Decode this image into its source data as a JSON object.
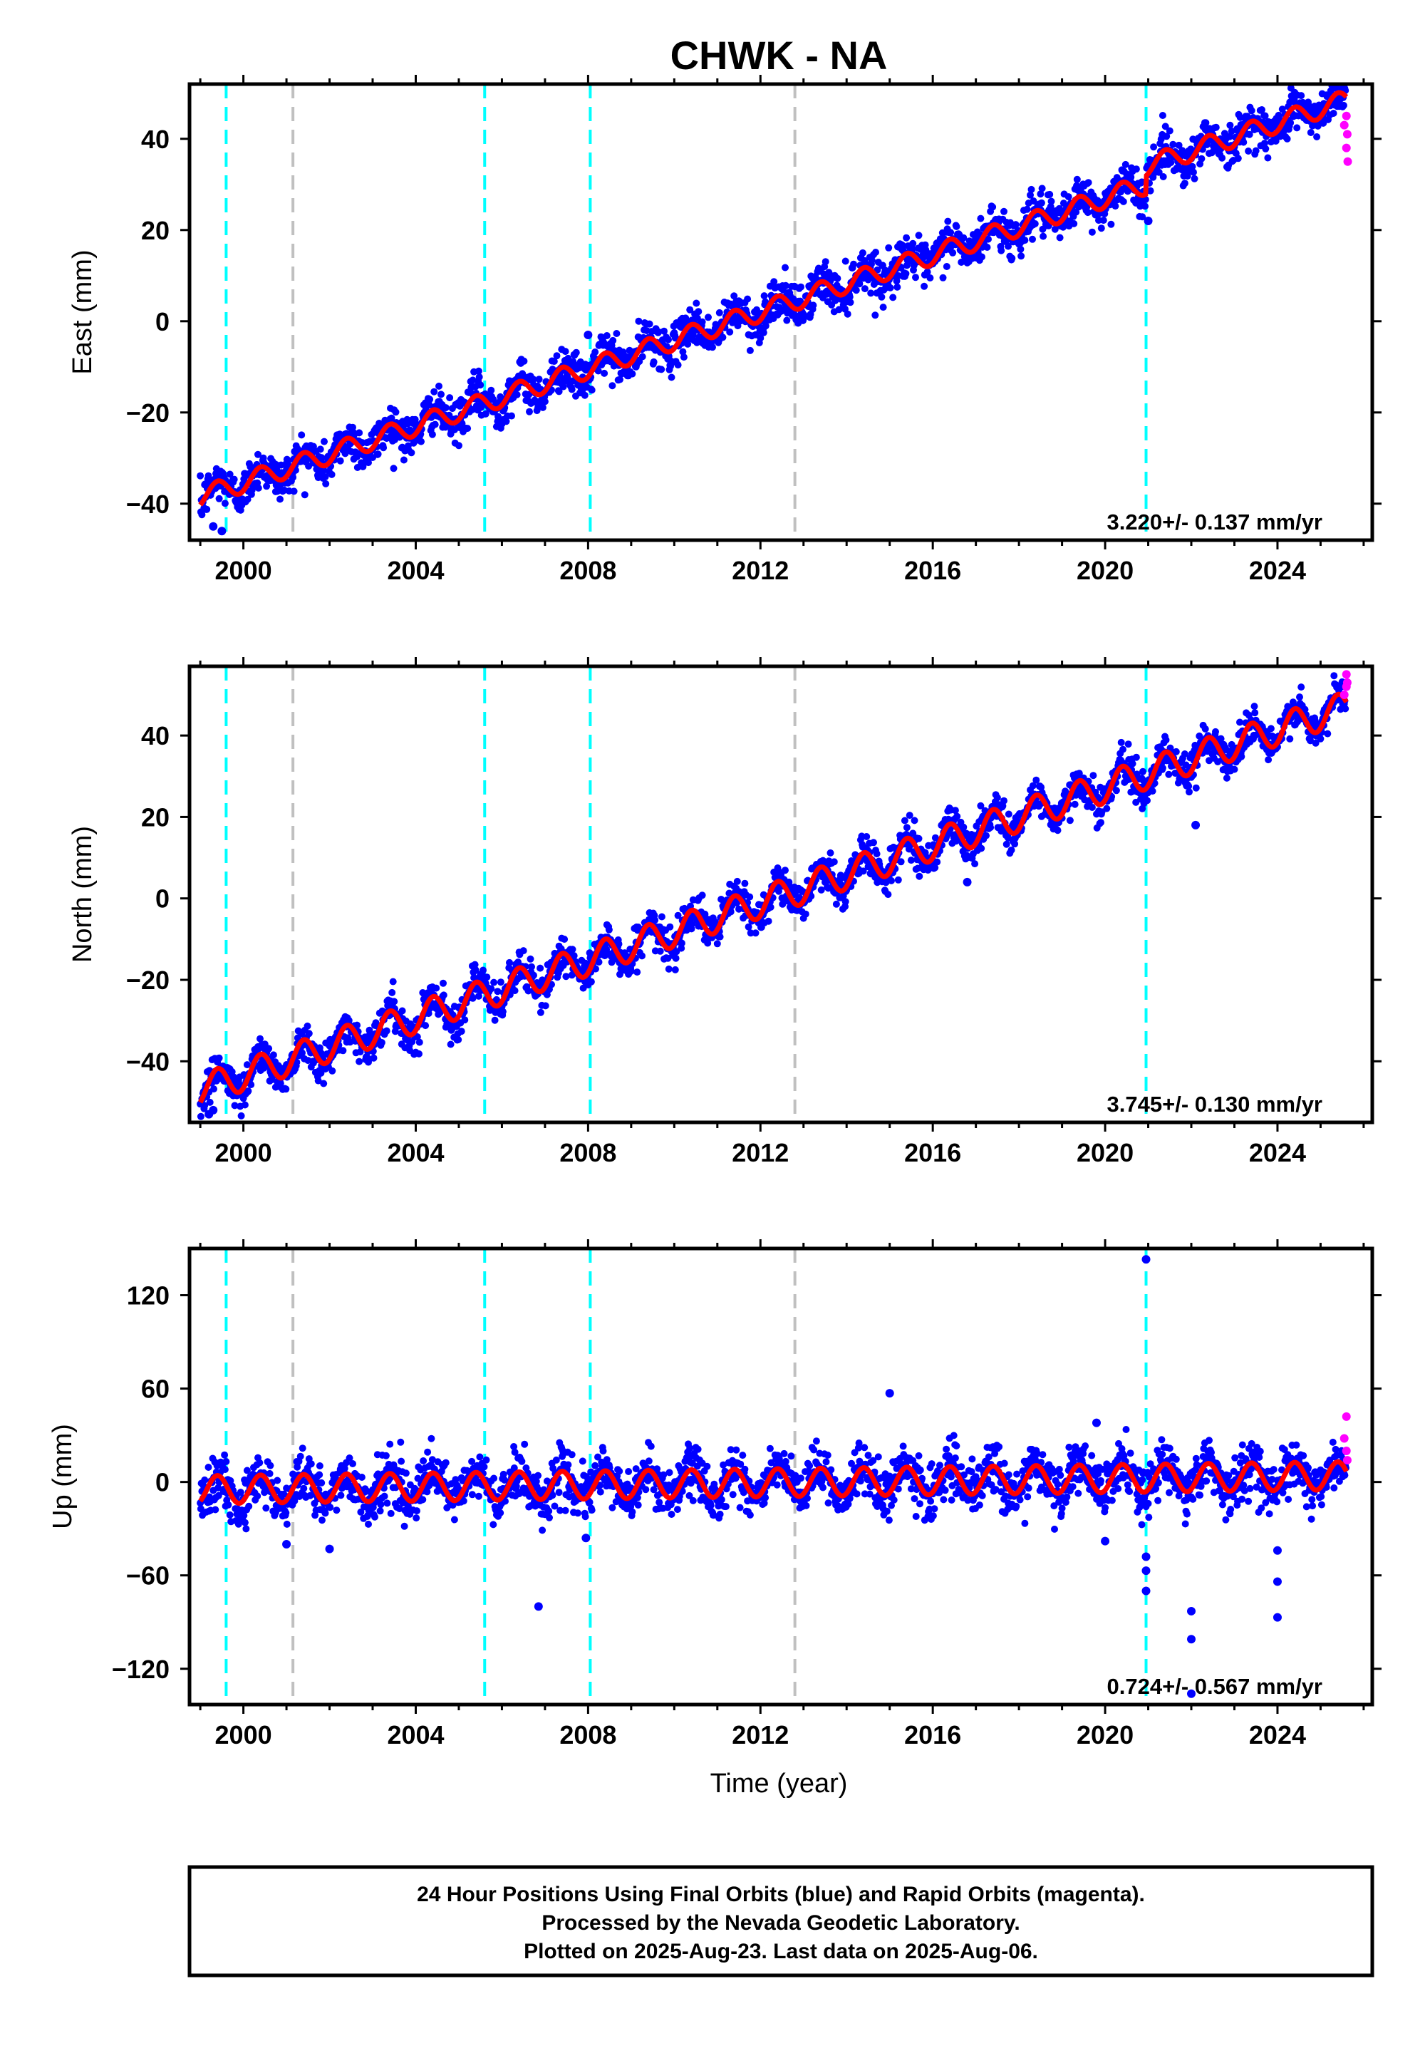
{
  "title": "CHWK - NA",
  "xlabel": "Time (year)",
  "footer": {
    "line1": "24 Hour Positions Using Final Orbits (blue) and Rapid Orbits (magenta).",
    "line2": "Processed by the Nevada Geodetic Laboratory.",
    "line3": "Plotted on 2025-Aug-23. Last data on 2025-Aug-06."
  },
  "colors": {
    "final_orbits": "#0000ff",
    "rapid_orbits": "#ff00ff",
    "model_fit": "#ff0000",
    "equipment_change": "#00ffff",
    "other_event": "#c0c0c0"
  },
  "chart_data": [
    {
      "type": "scatter",
      "ylabel": "East (mm)",
      "xlim": [
        1998.75,
        2026.2
      ],
      "ylim": [
        -48,
        52
      ],
      "xticks": [
        2000,
        2004,
        2008,
        2012,
        2016,
        2020,
        2024
      ],
      "yticks": [
        -40,
        -20,
        0,
        20,
        40
      ],
      "rate_label": "3.220+/- 0.137 mm/yr",
      "events_cyan": [
        1999.6,
        2005.6,
        2008.05,
        2020.95
      ],
      "events_gray": [
        2001.15,
        2012.8
      ],
      "trend": {
        "start": [
          1999.0,
          -38.5
        ],
        "end": [
          2025.6,
          44.5
        ],
        "seasonal_amp": 2.2,
        "noise": 2.3
      },
      "offsets": [
        {
          "x": 2020.95,
          "dy": 4
        }
      ],
      "outliers": [
        [
          1999.3,
          -45
        ],
        [
          1999.5,
          -46
        ],
        [
          2008.0,
          -3
        ],
        [
          2021.0,
          22
        ]
      ],
      "rapid_points": [
        [
          2025.55,
          43
        ],
        [
          2025.6,
          45
        ],
        [
          2025.62,
          41
        ],
        [
          2025.6,
          38
        ],
        [
          2025.63,
          35
        ]
      ]
    },
    {
      "type": "scatter",
      "ylabel": "North (mm)",
      "xlim": [
        1998.75,
        2026.2
      ],
      "ylim": [
        -55,
        57
      ],
      "xticks": [
        2000,
        2004,
        2008,
        2012,
        2016,
        2020,
        2024
      ],
      "yticks": [
        -40,
        -20,
        0,
        20,
        40
      ],
      "rate_label": "3.745+/- 0.130 mm/yr",
      "events_cyan": [
        1999.6,
        2005.6,
        2008.05,
        2020.95
      ],
      "events_gray": [
        2001.15,
        2012.8
      ],
      "trend": {
        "start": [
          1999.0,
          -47
        ],
        "end": [
          2025.6,
          47
        ],
        "seasonal_amp": 3.8,
        "noise": 2.3
      },
      "offsets": [],
      "outliers": [
        [
          1999.2,
          -53
        ],
        [
          1999.3,
          -52
        ],
        [
          2016.8,
          4
        ],
        [
          2022.1,
          18
        ]
      ],
      "rapid_points": [
        [
          2025.55,
          50
        ],
        [
          2025.6,
          52
        ],
        [
          2025.62,
          53
        ],
        [
          2025.6,
          55
        ]
      ]
    },
    {
      "type": "scatter",
      "ylabel": "Up (mm)",
      "xlim": [
        1998.75,
        2026.2
      ],
      "ylim": [
        -143,
        150
      ],
      "xticks": [
        2000,
        2004,
        2008,
        2012,
        2016,
        2020,
        2024
      ],
      "yticks": [
        -120,
        -60,
        0,
        60,
        120
      ],
      "rate_label": "0.724+/- 0.567 mm/yr",
      "events_cyan": [
        1999.6,
        2005.6,
        2008.05,
        2020.95
      ],
      "events_gray": [
        2001.15,
        2012.8
      ],
      "trend": {
        "start": [
          1999.0,
          -5
        ],
        "end": [
          2025.6,
          4
        ],
        "seasonal_amp": 9,
        "noise": 8
      },
      "offsets": [],
      "outliers": [
        [
          2006.85,
          -80
        ],
        [
          2007.95,
          -36
        ],
        [
          2015.0,
          57
        ],
        [
          2020.95,
          143
        ],
        [
          2020.95,
          -57
        ],
        [
          2020.95,
          -48
        ],
        [
          2020.95,
          -70
        ],
        [
          2020.0,
          -38
        ],
        [
          2022.0,
          -83
        ],
        [
          2022.0,
          -101
        ],
        [
          2022.0,
          -136
        ],
        [
          2024.0,
          -44
        ],
        [
          2024.0,
          -64
        ],
        [
          2024.0,
          -87
        ],
        [
          2001.0,
          -40
        ],
        [
          2002.0,
          -43
        ],
        [
          2019.8,
          38
        ]
      ],
      "rapid_points": [
        [
          2025.6,
          42
        ],
        [
          2025.55,
          28
        ],
        [
          2025.6,
          20
        ],
        [
          2025.62,
          14
        ]
      ]
    }
  ]
}
